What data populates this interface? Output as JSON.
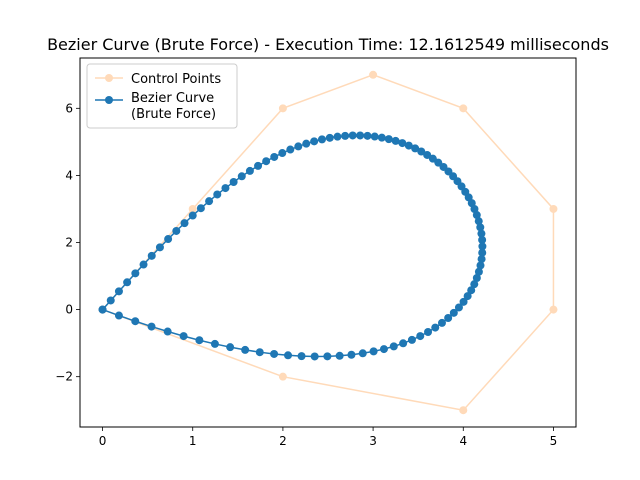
{
  "chart_data": {
    "type": "line",
    "title": "Bezier Curve (Brute Force) - Execution Time: 12.1612549 milliseconds",
    "xlabel": "",
    "ylabel": "",
    "xlim": [
      -0.25,
      5.25
    ],
    "ylim": [
      -3.5,
      7.5
    ],
    "xticks": [
      0,
      1,
      2,
      3,
      4,
      5
    ],
    "yticks": [
      -2,
      0,
      2,
      4,
      6
    ],
    "grid": false,
    "legend_position": "upper-left",
    "bezier_samples": 100,
    "series": [
      {
        "name": "Control Points",
        "color": "#ffdab9",
        "marker": "circle",
        "x": [
          0,
          1,
          2,
          3,
          4,
          5,
          5,
          4,
          2,
          0
        ],
        "y": [
          0,
          3,
          6,
          7,
          6,
          3,
          0,
          -3,
          -2,
          0
        ]
      },
      {
        "name": "Bezier Curve\n(Brute Force)",
        "color": "#1f77b4",
        "marker": "circle",
        "computed_from": "Control Points"
      }
    ]
  }
}
